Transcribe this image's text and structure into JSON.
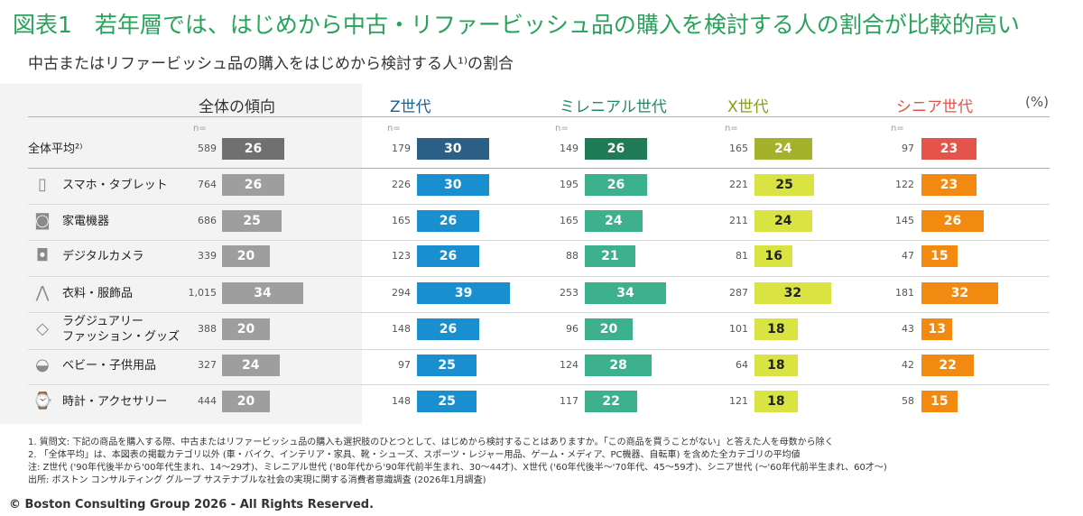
{
  "title": "図表1　若年層では、はじめから中古・リファービッシュ品の購入を検討する人の割合が比較的高い",
  "subtitle": "中古またはリファービッシュ品の購入をはじめから検討する人¹⁾の割合",
  "unit": "(%)",
  "n_label": "n=",
  "chart_data": {
    "type": "bar",
    "title": "中古またはリファービッシュ品の購入をはじめから検討する人¹⁾の割合",
    "unit": "(%)",
    "groups": [
      {
        "name": "全体の傾向",
        "color": "#9e9e9e",
        "header_color": "#333333",
        "avg_color": "#707070"
      },
      {
        "name": "Z世代",
        "color": "#1a8fcf",
        "header_color": "#1d5f8e",
        "avg_color": "#2b5f86"
      },
      {
        "name": "ミレニアル世代",
        "color": "#3db08e",
        "header_color": "#1e8b63",
        "avg_color": "#1f7a56"
      },
      {
        "name": "X世代",
        "color": "#d9e442",
        "header_color": "#8a9a1a",
        "avg_color": "#a3b22a"
      },
      {
        "name": "シニア世代",
        "color": "#f28a12",
        "header_color": "#e4544a",
        "avg_color": "#e4544a"
      }
    ],
    "categories": [
      {
        "label": "全体平均²⁾",
        "icon": "none",
        "n": [
          "589",
          "179",
          "149",
          "165",
          "97"
        ],
        "values": [
          26,
          30,
          26,
          24,
          23
        ]
      },
      {
        "label": "スマホ・タブレット",
        "icon": "smartphone-icon",
        "n": [
          "764",
          "226",
          "195",
          "221",
          "122"
        ],
        "values": [
          26,
          30,
          26,
          25,
          23
        ]
      },
      {
        "label": "家電機器",
        "icon": "washing-machine-icon",
        "n": [
          "686",
          "165",
          "165",
          "211",
          "145"
        ],
        "values": [
          25,
          26,
          24,
          24,
          26
        ]
      },
      {
        "label": "デジタルカメラ",
        "icon": "camera-icon",
        "n": [
          "339",
          "123",
          "88",
          "81",
          "47"
        ],
        "values": [
          20,
          26,
          21,
          16,
          15
        ]
      },
      {
        "label": "衣料・服飾品",
        "icon": "clothing-icon",
        "n": [
          "1,015",
          "294",
          "253",
          "287",
          "181"
        ],
        "values": [
          34,
          39,
          34,
          32,
          32
        ]
      },
      {
        "label": "ラグジュアリー\nファッション・グッズ",
        "icon": "diamond-icon",
        "n": [
          "388",
          "148",
          "96",
          "101",
          "43"
        ],
        "values": [
          20,
          26,
          20,
          18,
          13
        ]
      },
      {
        "label": "ベビー・子供用品",
        "icon": "baby-stroller-icon",
        "n": [
          "327",
          "97",
          "124",
          "64",
          "42"
        ],
        "values": [
          24,
          25,
          28,
          18,
          22
        ]
      },
      {
        "label": "時計・アクセサリー",
        "icon": "watch-icon",
        "n": [
          "444",
          "148",
          "117",
          "121",
          "58"
        ],
        "values": [
          20,
          25,
          22,
          18,
          15
        ]
      }
    ]
  },
  "notes": [
    "1. 質問文: 下記の商品を購入する際、中古またはリファービッシュ品の購入も選択肢のひとつとして、はじめから検討することはありますか。「この商品を買うことがない」と答えた人を母数から除く",
    "2. 「全体平均」は、本図表の掲載カテゴリ以外 (車・バイク、インテリア・家具、靴・シューズ、スポーツ・レジャー用品、ゲーム・メディア、PC機器、自転車) を含めた全カテゴリの平均値",
    "注: Z世代 ('90年代後半から'00年代生まれ、14～29才)、ミレニアル世代 ('80年代から'90年代前半生まれ、30～44才)、X世代 ('60年代後半～'70年代、45～59才)、シニア世代 (～'60年代前半生まれ、60才～)",
    "出所: ボストン コンサルティング グループ サステナブルな社会の実現に関する消費者意識調査 (2026年1月調査)"
  ],
  "copyright": "© Boston Consulting Group 2026 - All Rights Reserved."
}
